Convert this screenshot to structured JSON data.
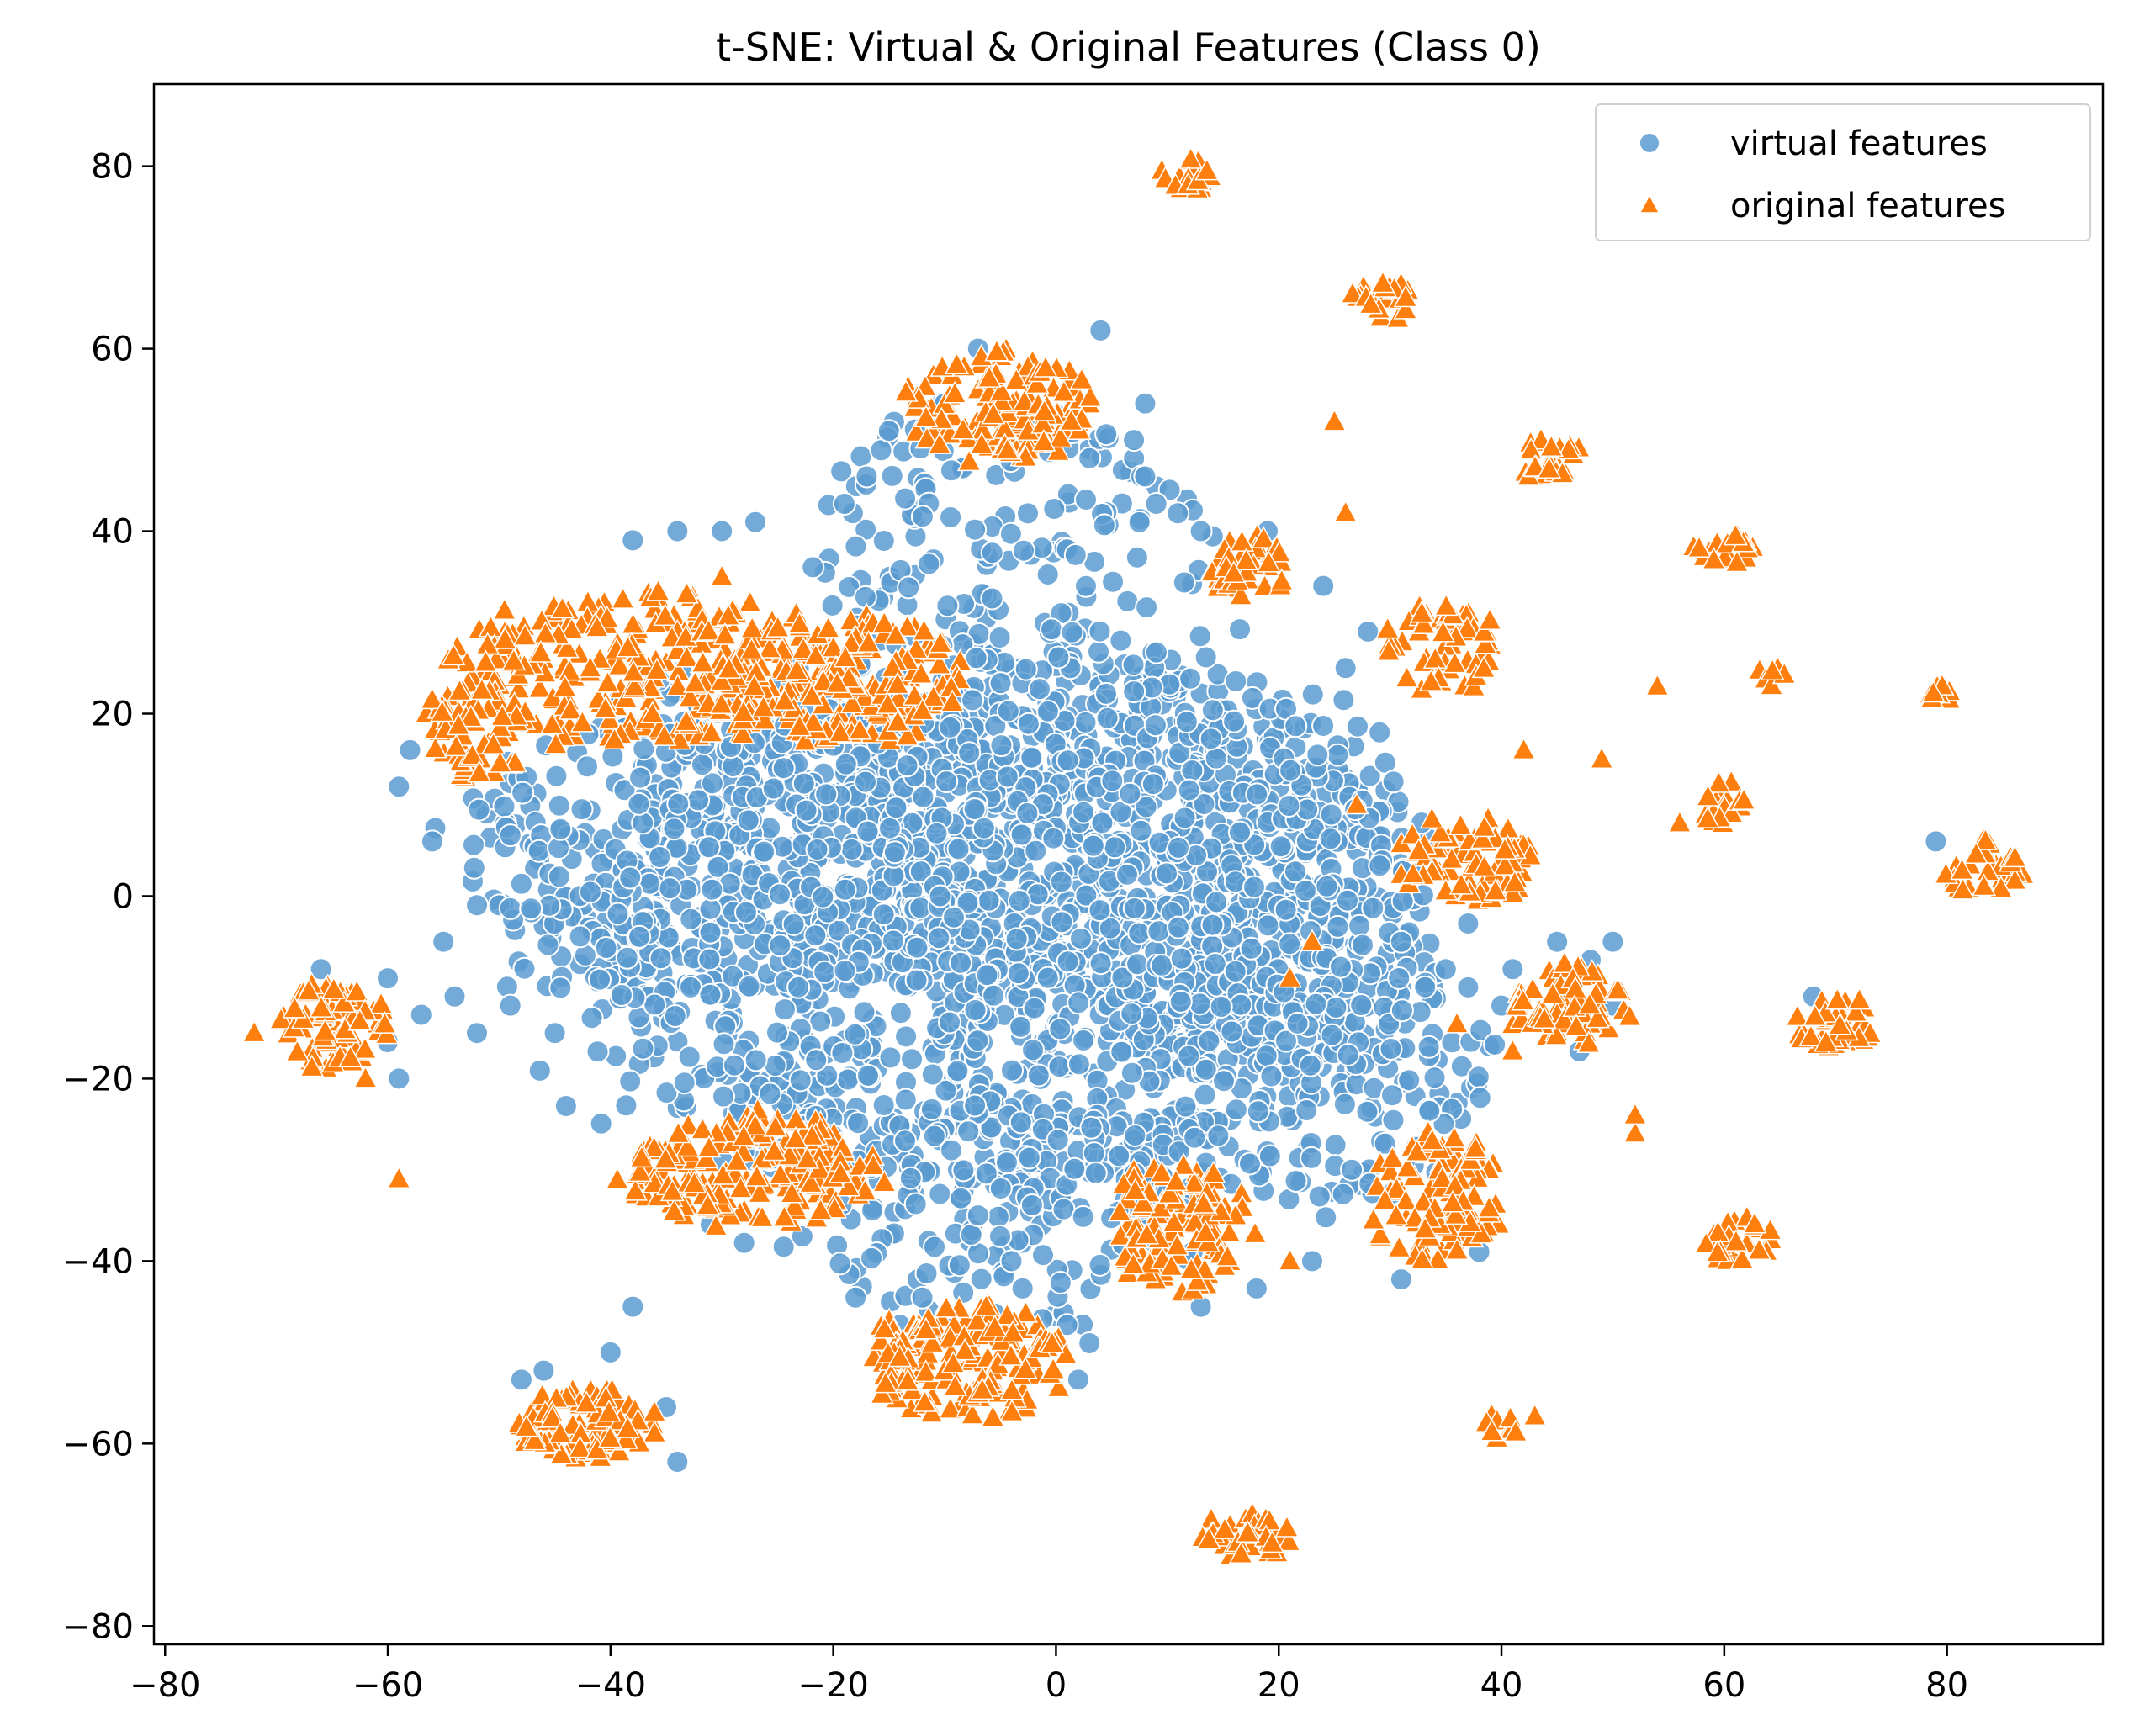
{
  "chart_data": {
    "type": "scatter",
    "title": "t-SNE: Virtual & Original Features (Class 0)",
    "xlabel": "",
    "ylabel": "",
    "xlim": [
      -81,
      94
    ],
    "ylim": [
      -82,
      89
    ],
    "x_ticks": [
      -80,
      -60,
      -40,
      -20,
      0,
      20,
      40,
      60,
      80
    ],
    "y_ticks": [
      -80,
      -60,
      -40,
      -20,
      0,
      20,
      40,
      60,
      80
    ],
    "x_tick_labels": [
      "−80",
      "−60",
      "−40",
      "−20",
      "0",
      "20",
      "40",
      "60",
      "80"
    ],
    "y_tick_labels": [
      "−80",
      "−60",
      "−40",
      "−20",
      "0",
      "20",
      "40",
      "60",
      "80"
    ],
    "grid": false,
    "legend_position": "top-right",
    "series": [
      {
        "name": "virtual features",
        "marker": "circle",
        "color": "#5b9bd0",
        "description": "large central cloud centered near (0, 0) spanning roughly x -58..52, y -62..62",
        "clusters": [
          {
            "cx": -5,
            "cy": -3,
            "rx": 38,
            "ry": 30,
            "n": 1500
          },
          {
            "cx": 5,
            "cy": 5,
            "rx": 25,
            "ry": 22,
            "n": 600
          },
          {
            "cx": -30,
            "cy": 5,
            "rx": 22,
            "ry": 18,
            "n": 350
          },
          {
            "cx": -5,
            "cy": 40,
            "rx": 18,
            "ry": 14,
            "n": 150
          },
          {
            "cx": -5,
            "cy": -35,
            "rx": 18,
            "ry": 12,
            "n": 150
          },
          {
            "cx": 25,
            "cy": -20,
            "rx": 15,
            "ry": 15,
            "n": 150
          }
        ],
        "points": [
          [
            -58,
            16
          ],
          [
            -59,
            12
          ],
          [
            -56,
            6
          ],
          [
            -52,
            -1
          ],
          [
            -55,
            -5
          ],
          [
            -57,
            -13
          ],
          [
            -59,
            -20
          ],
          [
            -60,
            -9
          ],
          [
            -54,
            -11
          ],
          [
            -49,
            -12
          ],
          [
            -52,
            -15
          ],
          [
            -60,
            -16
          ],
          [
            -66,
            -8
          ],
          [
            -44,
            -23
          ],
          [
            -45,
            -15
          ],
          [
            -38,
            -45
          ],
          [
            -40,
            -50
          ],
          [
            -48,
            -53
          ],
          [
            -46,
            -52
          ],
          [
            -35,
            -56
          ],
          [
            -34,
            -62
          ],
          [
            -18,
            -44
          ],
          [
            -14,
            -47
          ],
          [
            -12,
            -44
          ],
          [
            -7,
            -35
          ],
          [
            -4,
            -40
          ],
          [
            -3,
            -43
          ],
          [
            1,
            -47
          ],
          [
            3,
            -49
          ],
          [
            2,
            -53
          ],
          [
            13,
            -45
          ],
          [
            18,
            -43
          ],
          [
            23,
            -40
          ],
          [
            31,
            -42
          ],
          [
            38,
            -39
          ],
          [
            45,
            -5
          ],
          [
            48,
            -7
          ],
          [
            50,
            -5
          ],
          [
            47,
            -17
          ],
          [
            50,
            -12
          ],
          [
            41,
            -8
          ],
          [
            40,
            -12
          ],
          [
            37,
            -10
          ],
          [
            35,
            -8
          ],
          [
            31,
            -5
          ],
          [
            37,
            -3
          ],
          [
            26,
            25
          ],
          [
            28,
            29
          ],
          [
            24,
            34
          ],
          [
            19,
            40
          ],
          [
            13,
            40
          ],
          [
            4,
            62
          ],
          [
            -7,
            60
          ],
          [
            -10,
            54
          ],
          [
            -15,
            51
          ],
          [
            -17,
            46
          ],
          [
            -19,
            43
          ],
          [
            -27,
            41
          ],
          [
            -30,
            40
          ],
          [
            -34,
            40
          ],
          [
            -38,
            39
          ],
          [
            8,
            54
          ],
          [
            7,
            50
          ],
          [
            3,
            48
          ],
          [
            8,
            46
          ],
          [
            9,
            43
          ],
          [
            79,
            6
          ],
          [
            68,
            -11
          ],
          [
            -31,
            -36
          ],
          [
            -28,
            -38
          ]
        ]
      },
      {
        "name": "original features",
        "marker": "triangle",
        "color": "#ff7f0e",
        "clusters": [
          {
            "cx": -37,
            "cy": 25,
            "rx": 18,
            "ry": 8,
            "n": 260
          },
          {
            "cx": -20,
            "cy": 24,
            "rx": 12,
            "ry": 7,
            "n": 200
          },
          {
            "cx": -52,
            "cy": 18,
            "rx": 5,
            "ry": 5,
            "n": 60
          },
          {
            "cx": -5,
            "cy": 54,
            "rx": 8,
            "ry": 6,
            "n": 140
          },
          {
            "cx": 12,
            "cy": 79,
            "rx": 2.5,
            "ry": 2,
            "n": 20
          },
          {
            "cx": 29,
            "cy": 65,
            "rx": 3,
            "ry": 2.5,
            "n": 25
          },
          {
            "cx": 17,
            "cy": 36,
            "rx": 4,
            "ry": 3.5,
            "n": 40
          },
          {
            "cx": 44,
            "cy": 48,
            "rx": 3,
            "ry": 2.5,
            "n": 25
          },
          {
            "cx": 60,
            "cy": 38,
            "rx": 3,
            "ry": 2,
            "n": 18
          },
          {
            "cx": 35,
            "cy": 27,
            "rx": 5,
            "ry": 5,
            "n": 60
          },
          {
            "cx": 64,
            "cy": 24,
            "rx": 1.5,
            "ry": 1.2,
            "n": 8
          },
          {
            "cx": 79,
            "cy": 22,
            "rx": 1.5,
            "ry": 1.2,
            "n": 8
          },
          {
            "cx": 60,
            "cy": 10,
            "rx": 2.5,
            "ry": 3,
            "n": 20
          },
          {
            "cx": 83,
            "cy": 3,
            "rx": 3.5,
            "ry": 3,
            "n": 30
          },
          {
            "cx": 37,
            "cy": 4,
            "rx": 6,
            "ry": 4.5,
            "n": 80
          },
          {
            "cx": 46,
            "cy": -12,
            "rx": 5,
            "ry": 4.5,
            "n": 70
          },
          {
            "cx": 70,
            "cy": -14,
            "rx": 4,
            "ry": 3,
            "n": 40
          },
          {
            "cx": -65,
            "cy": -14,
            "rx": 5,
            "ry": 5,
            "n": 80
          },
          {
            "cx": -27,
            "cy": -30,
            "rx": 11,
            "ry": 6,
            "n": 200
          },
          {
            "cx": 11,
            "cy": -36,
            "rx": 6,
            "ry": 7,
            "n": 120
          },
          {
            "cx": 34,
            "cy": -33,
            "rx": 6,
            "ry": 7,
            "n": 110
          },
          {
            "cx": 61,
            "cy": -38,
            "rx": 3.5,
            "ry": 2.5,
            "n": 30
          },
          {
            "cx": -8,
            "cy": -51,
            "rx": 9,
            "ry": 6,
            "n": 180
          },
          {
            "cx": -42,
            "cy": -58,
            "rx": 6,
            "ry": 4,
            "n": 90
          },
          {
            "cx": 40,
            "cy": -58,
            "rx": 2,
            "ry": 1.5,
            "n": 12
          },
          {
            "cx": 17,
            "cy": -70,
            "rx": 4,
            "ry": 2.5,
            "n": 40
          }
        ],
        "points": [
          [
            -72,
            -15
          ],
          [
            -59,
            -31
          ],
          [
            26,
            42
          ],
          [
            25,
            52
          ],
          [
            42,
            16
          ],
          [
            49,
            15
          ],
          [
            54,
            23
          ],
          [
            56,
            8
          ],
          [
            52,
            -26
          ],
          [
            52,
            -24
          ],
          [
            41,
            -17
          ],
          [
            36,
            -14
          ],
          [
            23,
            -5
          ],
          [
            21,
            -9
          ],
          [
            27,
            10
          ],
          [
            21,
            -40
          ],
          [
            43,
            -57
          ],
          [
            -62,
            -20
          ],
          [
            -30,
            35
          ]
        ]
      }
    ]
  },
  "legend": {
    "items": [
      {
        "label": "virtual features",
        "marker": "circle",
        "color": "#5b9bd0"
      },
      {
        "label": "original features",
        "marker": "triangle",
        "color": "#ff7f0e"
      }
    ]
  }
}
